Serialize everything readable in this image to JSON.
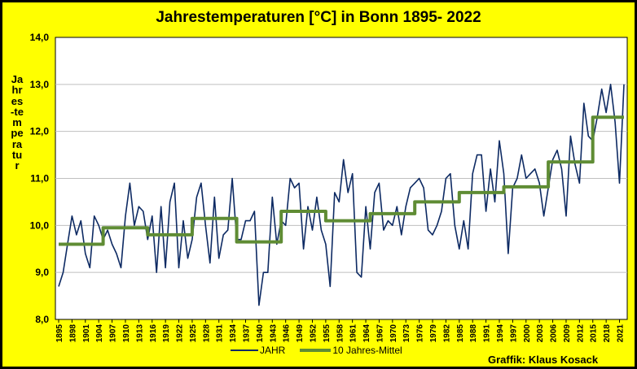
{
  "chart_data": {
    "type": "line",
    "title": "Jahrestemperaturen [°C] in Bonn 1895- 2022",
    "ylabel": "Jahres-temperatur",
    "credit": "Graffik: Klaus Kosack",
    "ylim": [
      8.0,
      14.0
    ],
    "yticks": [
      "8,0",
      "9,0",
      "10,0",
      "11,0",
      "12,0",
      "13,0",
      "14,0"
    ],
    "xlim": [
      1895,
      2022
    ],
    "xticks": [
      "1895",
      "1898",
      "1901",
      "1904",
      "1907",
      "1910",
      "1913",
      "1916",
      "1919",
      "1922",
      "1925",
      "1928",
      "1931",
      "1934",
      "1937",
      "1940",
      "1943",
      "1946",
      "1949",
      "1952",
      "1955",
      "1958",
      "1961",
      "1964",
      "1967",
      "1970",
      "1973",
      "1976",
      "1979",
      "1982",
      "1985",
      "1988",
      "1991",
      "1994",
      "1997",
      "2000",
      "2003",
      "2006",
      "2009",
      "2012",
      "2015",
      "2018",
      "2021"
    ],
    "grid": true,
    "legend_position": "bottom",
    "colors": {
      "annual": "#0d2a63",
      "decade": "#5f8c34",
      "background": "#FFFF00",
      "plot": "#FFFFFF"
    },
    "series": [
      {
        "name": "JAHR",
        "x": [
          1895,
          1896,
          1897,
          1898,
          1899,
          1900,
          1901,
          1902,
          1903,
          1904,
          1905,
          1906,
          1907,
          1908,
          1909,
          1910,
          1911,
          1912,
          1913,
          1914,
          1915,
          1916,
          1917,
          1918,
          1919,
          1920,
          1921,
          1922,
          1923,
          1924,
          1925,
          1926,
          1927,
          1928,
          1929,
          1930,
          1931,
          1932,
          1933,
          1934,
          1935,
          1936,
          1937,
          1938,
          1939,
          1940,
          1941,
          1942,
          1943,
          1944,
          1945,
          1946,
          1947,
          1948,
          1949,
          1950,
          1951,
          1952,
          1953,
          1954,
          1955,
          1956,
          1957,
          1958,
          1959,
          1960,
          1961,
          1962,
          1963,
          1964,
          1965,
          1966,
          1967,
          1968,
          1969,
          1970,
          1971,
          1972,
          1973,
          1974,
          1975,
          1976,
          1977,
          1978,
          1979,
          1980,
          1981,
          1982,
          1983,
          1984,
          1985,
          1986,
          1987,
          1988,
          1989,
          1990,
          1991,
          1992,
          1993,
          1994,
          1995,
          1996,
          1997,
          1998,
          1999,
          2000,
          2001,
          2002,
          2003,
          2004,
          2005,
          2006,
          2007,
          2008,
          2009,
          2010,
          2011,
          2012,
          2013,
          2014,
          2015,
          2016,
          2017,
          2018,
          2019,
          2020,
          2021,
          2022
        ],
        "values": [
          8.7,
          9.0,
          9.6,
          10.2,
          9.8,
          10.1,
          9.4,
          9.1,
          10.2,
          10.0,
          9.7,
          9.9,
          9.6,
          9.4,
          9.1,
          10.2,
          10.9,
          10.0,
          10.4,
          10.3,
          9.7,
          10.2,
          9.0,
          10.4,
          9.1,
          10.5,
          10.9,
          9.1,
          10.1,
          9.3,
          9.7,
          10.6,
          10.9,
          10.0,
          9.2,
          10.6,
          9.3,
          9.8,
          9.9,
          11.0,
          9.7,
          9.7,
          10.1,
          10.1,
          10.3,
          8.3,
          9.0,
          9.0,
          10.6,
          9.6,
          10.1,
          10.0,
          11.0,
          10.8,
          10.9,
          9.5,
          10.4,
          9.9,
          10.6,
          9.9,
          9.6,
          8.7,
          10.7,
          10.5,
          11.4,
          10.7,
          11.1,
          9.0,
          8.9,
          10.4,
          9.5,
          10.7,
          10.9,
          9.9,
          10.1,
          10.0,
          10.4,
          9.8,
          10.4,
          10.8,
          10.9,
          11.0,
          10.8,
          9.9,
          9.8,
          10.0,
          10.3,
          11.0,
          11.1,
          10.0,
          9.5,
          10.1,
          9.5,
          11.1,
          11.5,
          11.5,
          10.3,
          11.2,
          10.5,
          11.8,
          11.1,
          9.4,
          10.8,
          11.0,
          11.5,
          11.0,
          11.1,
          11.2,
          10.9,
          10.2,
          10.8,
          11.4,
          11.6,
          11.2,
          10.2,
          11.9,
          11.3,
          10.9,
          12.6,
          11.9,
          11.8,
          12.3,
          12.9,
          12.4,
          13.0,
          12.2,
          10.9,
          13.0
        ]
      },
      {
        "name": "10 Jahres-Mittel",
        "x": [
          1895,
          1905,
          1905,
          1915,
          1915,
          1925,
          1925,
          1935,
          1935,
          1945,
          1945,
          1955,
          1955,
          1965,
          1965,
          1975,
          1975,
          1985,
          1985,
          1995,
          1995,
          2005,
          2005,
          2015,
          2015,
          2022
        ],
        "values": [
          9.6,
          9.6,
          9.95,
          9.95,
          9.8,
          9.8,
          10.15,
          10.15,
          9.65,
          9.65,
          10.3,
          10.3,
          10.1,
          10.1,
          10.25,
          10.25,
          10.5,
          10.5,
          10.7,
          10.7,
          10.82,
          10.82,
          11.35,
          11.35,
          12.3,
          12.3
        ]
      }
    ]
  }
}
